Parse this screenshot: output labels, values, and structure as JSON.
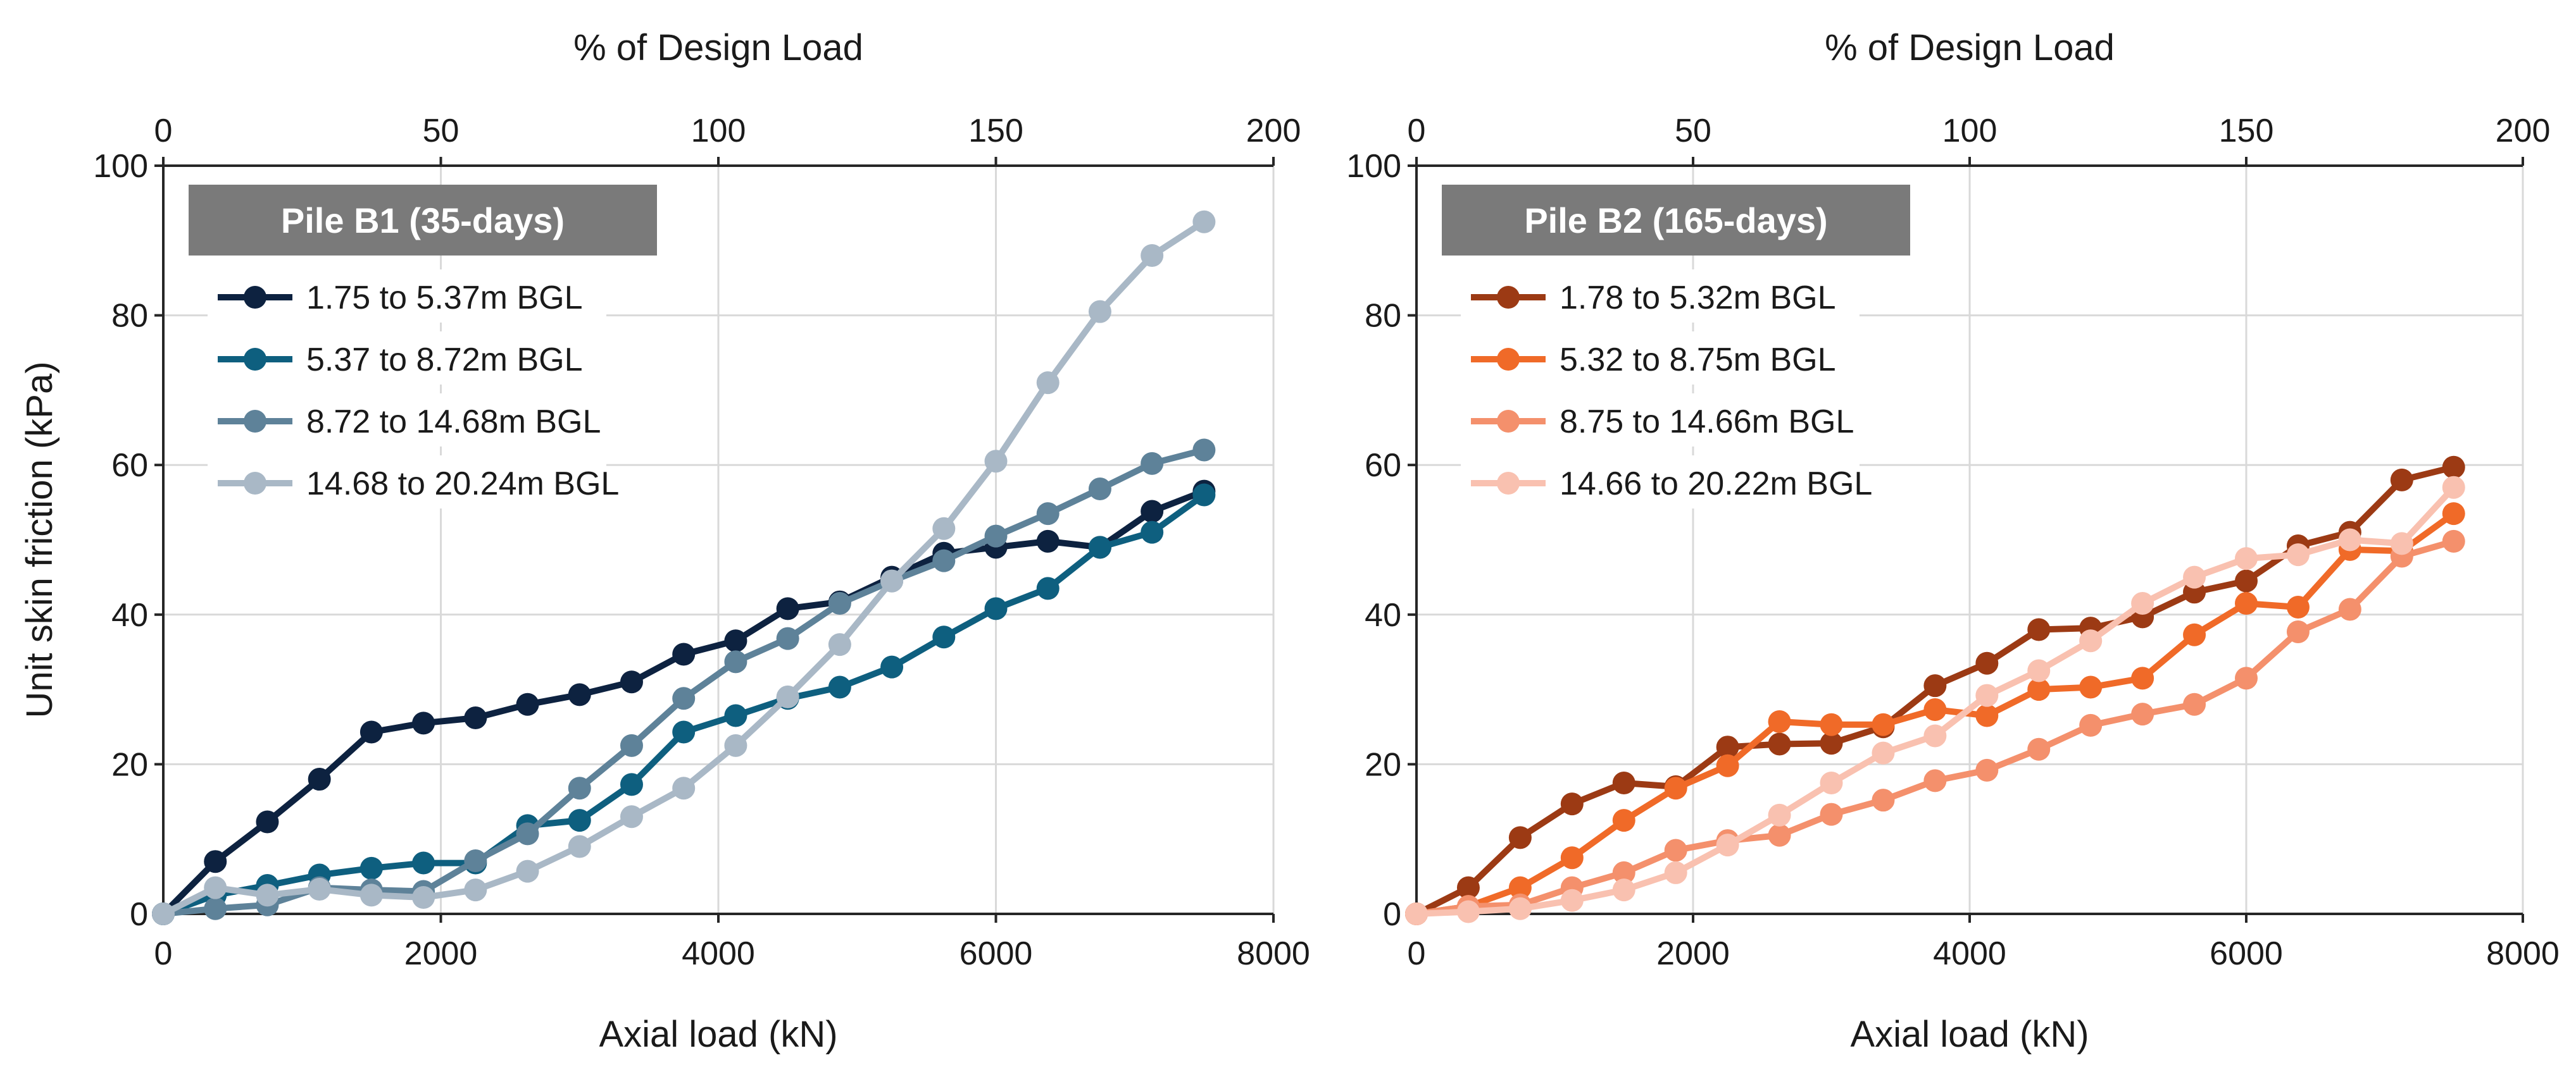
{
  "chart_data": [
    {
      "type": "line",
      "badge": "Pile B1 (35-days)",
      "xlabel": "Axial load (kN)",
      "x2label": "% of Design Load",
      "ylabel": "Unit skin friction (kPa)",
      "xlim": [
        0,
        8000
      ],
      "ylim": [
        0,
        100
      ],
      "x2lim": [
        0,
        200
      ],
      "xticks": [
        "0",
        "2000",
        "4000",
        "6000",
        "8000"
      ],
      "x2ticks": [
        "0",
        "50",
        "100",
        "150",
        "200"
      ],
      "yticks": [
        "0",
        "20",
        "40",
        "60",
        "80",
        "100"
      ],
      "grid": true,
      "legend_position": "top-left",
      "series": [
        {
          "name": "1.75 to 5.37m BGL",
          "color": "#0d2240",
          "x": [
            0,
            375,
            750,
            1125,
            1500,
            1875,
            2250,
            2625,
            3000,
            3375,
            3750,
            4125,
            4500,
            4875,
            5250,
            5625,
            6000,
            6375,
            6750,
            7125,
            7500
          ],
          "y": [
            0,
            7,
            12.3,
            18,
            24.3,
            25.5,
            26.2,
            28,
            29.3,
            31,
            34.7,
            36.5,
            40.8,
            41.7,
            45,
            48.2,
            49,
            49.8,
            49,
            53.8,
            56.5
          ]
        },
        {
          "name": "5.37 to 8.72m BGL",
          "color": "#0e5f7f",
          "x": [
            0,
            375,
            750,
            1125,
            1500,
            1875,
            2250,
            2625,
            3000,
            3375,
            3750,
            4125,
            4500,
            4875,
            5250,
            5625,
            6000,
            6375,
            6750,
            7125,
            7500
          ],
          "y": [
            0,
            2.5,
            3.8,
            5.2,
            6.1,
            6.8,
            6.8,
            11.8,
            12.5,
            17.3,
            24.3,
            26.5,
            28.8,
            30.3,
            33,
            37,
            40.8,
            43.5,
            49,
            51,
            56
          ]
        },
        {
          "name": "8.72 to 14.68m BGL",
          "color": "#5e8299",
          "x": [
            0,
            375,
            750,
            1125,
            1500,
            1875,
            2250,
            2625,
            3000,
            3375,
            3750,
            4125,
            4500,
            4875,
            5250,
            5625,
            6000,
            6375,
            6750,
            7125,
            7500
          ],
          "y": [
            0,
            0.7,
            1.2,
            3.5,
            3.2,
            3,
            7.1,
            10.7,
            16.8,
            22.5,
            28.8,
            33.7,
            36.8,
            41.5,
            44.5,
            47.2,
            50.5,
            53.5,
            56.8,
            60.2,
            62
          ]
        },
        {
          "name": "14.68 to 20.24m BGL",
          "color": "#a9b8c6",
          "x": [
            0,
            375,
            750,
            1125,
            1500,
            1875,
            2250,
            2625,
            3000,
            3375,
            3750,
            4125,
            4500,
            4875,
            5250,
            5625,
            6000,
            6375,
            6750,
            7125,
            7500
          ],
          "y": [
            0,
            3.5,
            2.5,
            3.3,
            2.5,
            2.2,
            3.2,
            5.7,
            9,
            13,
            16.8,
            22.5,
            29,
            36,
            44.5,
            51.5,
            60.5,
            71,
            80.5,
            88,
            92.5
          ]
        }
      ]
    },
    {
      "type": "line",
      "badge": "Pile B2 (165-days)",
      "xlabel": "Axial load (kN)",
      "x2label": "% of Design Load",
      "ylabel": "",
      "xlim": [
        0,
        8000
      ],
      "ylim": [
        0,
        100
      ],
      "x2lim": [
        0,
        200
      ],
      "xticks": [
        "0",
        "2000",
        "4000",
        "6000",
        "8000"
      ],
      "x2ticks": [
        "0",
        "50",
        "100",
        "150",
        "200"
      ],
      "yticks": [
        "0",
        "20",
        "40",
        "60",
        "80",
        "100"
      ],
      "grid": true,
      "legend_position": "top-left",
      "series": [
        {
          "name": "1.78 to 5.32m BGL",
          "color": "#9c3a14",
          "x": [
            0,
            375,
            750,
            1125,
            1500,
            1875,
            2250,
            2625,
            3000,
            3375,
            3750,
            4125,
            4500,
            4875,
            5250,
            5625,
            6000,
            6375,
            6750,
            7125,
            7500
          ],
          "y": [
            0,
            3.5,
            10.2,
            14.7,
            17.5,
            17,
            22.3,
            22.7,
            22.8,
            25,
            30.5,
            33.5,
            38,
            38.2,
            39.7,
            43,
            44.5,
            49.2,
            51,
            58,
            59.7
          ]
        },
        {
          "name": "5.32 to 8.75m BGL",
          "color": "#f06a28",
          "x": [
            0,
            375,
            750,
            1125,
            1500,
            1875,
            2250,
            2625,
            3000,
            3375,
            3750,
            4125,
            4500,
            4875,
            5250,
            5625,
            6000,
            6375,
            6750,
            7125,
            7500
          ],
          "y": [
            0,
            1,
            3.5,
            7.5,
            12.5,
            16.8,
            19.8,
            25.7,
            25.3,
            25.3,
            27.3,
            26.5,
            30,
            30.3,
            31.5,
            37.3,
            41.5,
            41,
            48.7,
            48.5,
            53.5
          ]
        },
        {
          "name": "8.75 to 14.66m BGL",
          "color": "#f4906c",
          "x": [
            0,
            375,
            750,
            1125,
            1500,
            1875,
            2250,
            2625,
            3000,
            3375,
            3750,
            4125,
            4500,
            4875,
            5250,
            5625,
            6000,
            6375,
            6750,
            7125,
            7500
          ],
          "y": [
            0,
            1,
            1.2,
            3.5,
            5.5,
            8.5,
            9.8,
            10.5,
            13.3,
            15.2,
            17.8,
            19.2,
            22,
            25.2,
            26.7,
            28,
            31.5,
            37.7,
            40.7,
            47.8,
            49.8
          ]
        },
        {
          "name": "14.66 to 20.22m BGL",
          "color": "#f9c1b0",
          "x": [
            0,
            375,
            750,
            1125,
            1500,
            1875,
            2250,
            2625,
            3000,
            3375,
            3750,
            4125,
            4500,
            4875,
            5250,
            5625,
            6000,
            6375,
            6750,
            7125,
            7500
          ],
          "y": [
            0,
            0.3,
            0.7,
            1.8,
            3.2,
            5.5,
            9.2,
            13.2,
            17.5,
            21.5,
            23.8,
            29.2,
            32.5,
            36.5,
            41.5,
            45,
            47.5,
            48,
            50,
            49.5,
            57
          ]
        }
      ]
    }
  ]
}
